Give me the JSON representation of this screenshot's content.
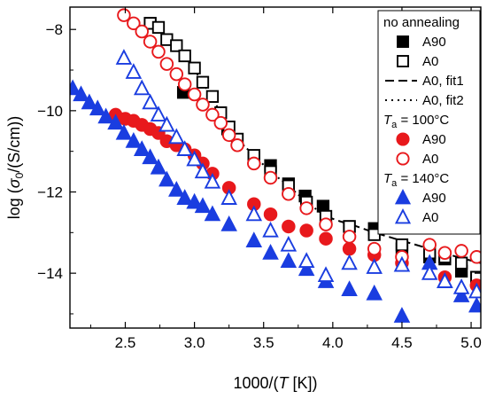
{
  "chart_data": {
    "type": "scatter",
    "title": "",
    "xlabel": {
      "pre": "1000/(",
      "var": "T",
      "post": " [K])"
    },
    "ylabel": {
      "pre": "log (",
      "var": "σ",
      "sub": "0",
      "post": "/(S/cm))"
    },
    "xlim": [
      2.1,
      5.07
    ],
    "ylim": [
      -15.35,
      -7.45
    ],
    "xticks": [
      "2.5",
      "3.0",
      "3.5",
      "4.0",
      "4.5",
      "5.0"
    ],
    "yticks": [
      "−8",
      "−10",
      "−12",
      "−14"
    ],
    "legend": {
      "placement": "top-right",
      "groups": [
        {
          "heading": "no annealing"
        },
        {
          "heading": {
            "var": "T",
            "sub": "a",
            "post": " = 100°C"
          }
        },
        {
          "heading": {
            "var": "T",
            "sub": "a",
            "post": " = 140°C"
          }
        }
      ]
    },
    "series": [
      {
        "name": "A90",
        "group": 0,
        "marker": "square",
        "filled": true,
        "color": "#000000",
        "x": [
          2.68,
          2.92,
          3.24,
          3.43,
          3.55,
          3.68,
          3.8,
          3.93,
          4.12,
          4.3,
          4.5,
          4.7,
          4.81,
          4.93,
          5.04
        ],
        "y": [
          -7.85,
          -9.55,
          -10.45,
          -11.15,
          -11.35,
          -11.8,
          -12.1,
          -12.35,
          -12.85,
          -12.9,
          -13.4,
          -13.6,
          -13.65,
          -13.95,
          -14.1
        ]
      },
      {
        "name": "A0",
        "group": 0,
        "marker": "square",
        "filled": false,
        "color": "#000000",
        "x": [
          2.68,
          2.74,
          2.8,
          2.87,
          2.93,
          3.0,
          3.06,
          3.13,
          3.19,
          3.25,
          3.31,
          3.43,
          3.55,
          3.68,
          3.81,
          3.95,
          4.12,
          4.3,
          4.5,
          4.7,
          4.81,
          4.93,
          5.04
        ],
        "y": [
          -7.85,
          -7.95,
          -8.25,
          -8.4,
          -8.65,
          -8.95,
          -9.3,
          -9.65,
          -10.05,
          -10.4,
          -10.7,
          -11.1,
          -11.5,
          -11.85,
          -12.25,
          -12.6,
          -12.85,
          -13.05,
          -13.3,
          -13.5,
          -13.6,
          -13.75,
          -14.1
        ]
      },
      {
        "name": "A90",
        "group": 1,
        "marker": "circle",
        "filled": true,
        "color": "#e8191c",
        "x": [
          2.43,
          2.5,
          2.56,
          2.62,
          2.68,
          2.74,
          2.8,
          2.87,
          2.93,
          3.0,
          3.06,
          3.13,
          3.25,
          3.43,
          3.55,
          3.68,
          3.81,
          3.95,
          4.12,
          4.3,
          4.5,
          4.81,
          5.04
        ],
        "y": [
          -10.1,
          -10.2,
          -10.25,
          -10.35,
          -10.45,
          -10.55,
          -10.75,
          -10.85,
          -10.95,
          -11.1,
          -11.3,
          -11.55,
          -11.9,
          -12.3,
          -12.55,
          -12.85,
          -12.95,
          -13.15,
          -13.4,
          -13.55,
          -13.75,
          -14.1,
          -14.3
        ]
      },
      {
        "name": "A0",
        "group": 1,
        "marker": "circle",
        "filled": false,
        "color": "#e8191c",
        "x": [
          2.49,
          2.56,
          2.62,
          2.68,
          2.74,
          2.8,
          2.87,
          2.93,
          3.0,
          3.06,
          3.13,
          3.19,
          3.25,
          3.31,
          3.43,
          3.55,
          3.68,
          3.81,
          3.95,
          4.12,
          4.3,
          4.5,
          4.7,
          4.81,
          4.93,
          5.04
        ],
        "y": [
          -7.65,
          -7.85,
          -8.05,
          -8.3,
          -8.55,
          -8.85,
          -9.1,
          -9.35,
          -9.6,
          -9.85,
          -10.1,
          -10.3,
          -10.6,
          -10.85,
          -11.3,
          -11.65,
          -12.05,
          -12.4,
          -12.8,
          -13.1,
          -13.4,
          -13.6,
          -13.3,
          -13.5,
          -13.45,
          -13.6
        ]
      },
      {
        "name": "A90",
        "group": 2,
        "marker": "triangle",
        "filled": true,
        "color": "#1a3de0",
        "x": [
          2.12,
          2.18,
          2.24,
          2.3,
          2.36,
          2.43,
          2.49,
          2.56,
          2.62,
          2.68,
          2.74,
          2.8,
          2.87,
          2.93,
          3.0,
          3.06,
          3.13,
          3.25,
          3.43,
          3.55,
          3.68,
          3.81,
          3.95,
          4.12,
          4.3,
          4.5,
          4.7,
          4.81,
          4.93,
          5.04
        ],
        "y": [
          -9.45,
          -9.6,
          -9.8,
          -9.95,
          -10.15,
          -10.3,
          -10.55,
          -10.75,
          -10.95,
          -11.15,
          -11.4,
          -11.7,
          -11.95,
          -12.15,
          -12.25,
          -12.35,
          -12.55,
          -12.8,
          -13.2,
          -13.5,
          -13.7,
          -13.9,
          -14.2,
          -14.4,
          -14.5,
          -15.05,
          -13.75,
          -14.2,
          -14.55,
          -14.8
        ]
      },
      {
        "name": "A0",
        "group": 2,
        "marker": "triangle",
        "filled": false,
        "color": "#1a3de0",
        "x": [
          2.49,
          2.56,
          2.62,
          2.68,
          2.74,
          2.8,
          2.87,
          2.93,
          3.0,
          3.06,
          3.13,
          3.25,
          3.43,
          3.55,
          3.68,
          3.81,
          3.95,
          4.12,
          4.3,
          4.5,
          4.7,
          4.81,
          4.93,
          5.04
        ],
        "y": [
          -8.7,
          -9.05,
          -9.45,
          -9.8,
          -10.1,
          -10.35,
          -10.65,
          -10.95,
          -11.2,
          -11.5,
          -11.75,
          -12.15,
          -12.55,
          -12.95,
          -13.3,
          -13.7,
          -14.05,
          -13.75,
          -13.85,
          -13.8,
          -14.0,
          -14.2,
          -14.35,
          -14.45
        ]
      }
    ],
    "fits": [
      {
        "name": "A0, fit1",
        "group": 0,
        "style": "dashed",
        "color": "#000000",
        "x": [
          3.95,
          4.05,
          4.15,
          4.3,
          4.5,
          4.7,
          4.9,
          5.07
        ],
        "y": [
          -12.6,
          -12.72,
          -12.82,
          -13.0,
          -13.2,
          -13.4,
          -13.6,
          -13.75
        ]
      },
      {
        "name": "A0, fit2",
        "group": 0,
        "style": "dotted",
        "color": "#000000",
        "x": [
          2.68,
          2.8,
          2.93,
          3.06,
          3.19,
          3.31,
          3.43,
          3.55,
          3.68,
          3.81,
          3.95
        ],
        "y": [
          -7.85,
          -8.25,
          -8.65,
          -9.3,
          -10.05,
          -10.7,
          -11.1,
          -11.5,
          -11.85,
          -12.25,
          -12.6
        ]
      }
    ]
  }
}
